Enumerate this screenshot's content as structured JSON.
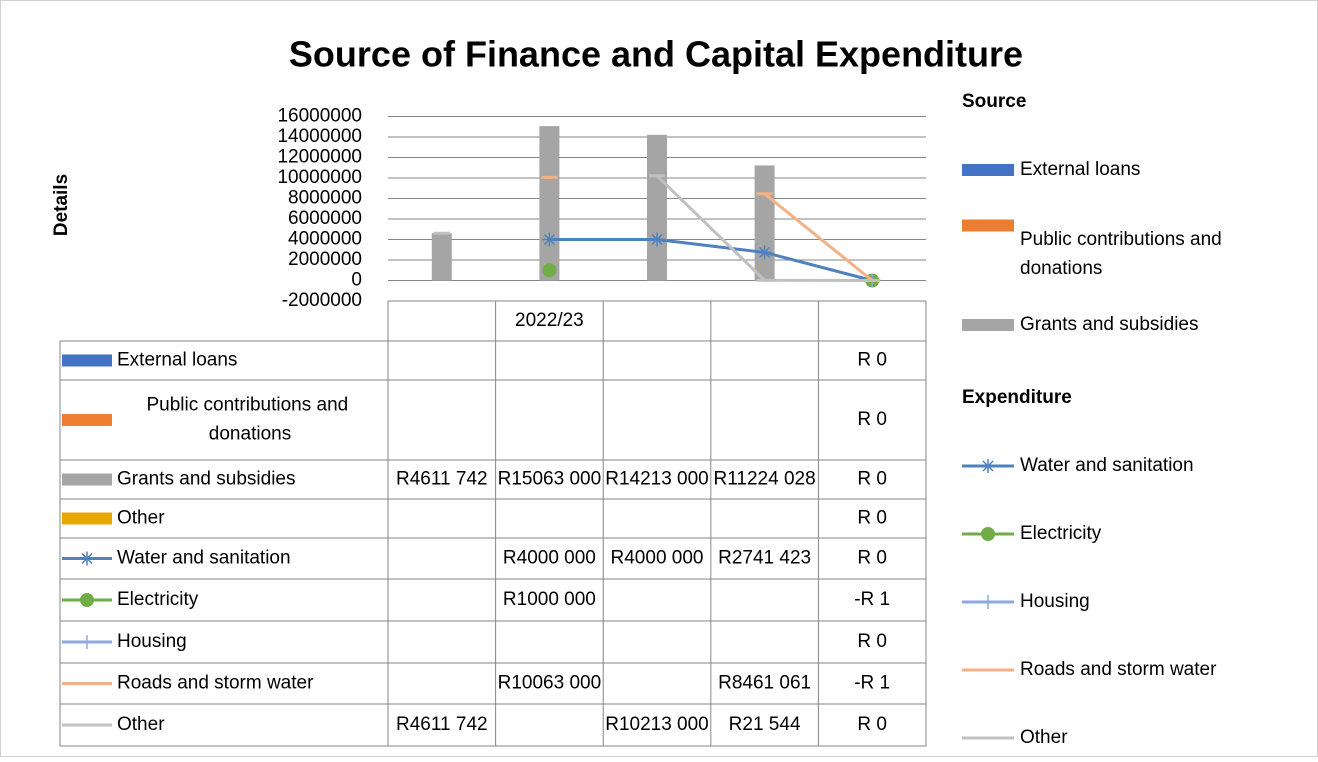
{
  "chart_data": {
    "type": "bar",
    "title": "Source of Finance and Capital Expenditure",
    "y_axis_label": "Details",
    "categories": [
      null,
      "2022/23",
      null,
      null,
      null
    ],
    "ylim": [
      -2000000,
      16000000
    ],
    "yticks": [
      -2000000,
      0,
      2000000,
      4000000,
      6000000,
      8000000,
      10000000,
      12000000,
      14000000,
      16000000
    ],
    "grid": true,
    "legend_position": "right",
    "legend_groups": [
      {
        "title": "Source",
        "series": [
          0,
          1,
          2
        ]
      },
      {
        "title": "Expenditure",
        "series": [
          4,
          5,
          6,
          7,
          8
        ]
      }
    ],
    "series": [
      {
        "name": "External loans",
        "type": "bar",
        "color": "#4472c4",
        "values": [
          null,
          null,
          null,
          null,
          0
        ],
        "value_labels": [
          null,
          null,
          null,
          null,
          "R 0"
        ]
      },
      {
        "name": "Public contributions and donations",
        "type": "bar",
        "color": "#ed7d31",
        "values": [
          null,
          null,
          null,
          null,
          0
        ],
        "value_labels": [
          null,
          null,
          null,
          null,
          "R 0"
        ]
      },
      {
        "name": "Grants and subsidies",
        "type": "bar",
        "color": "#a5a5a5",
        "values": [
          4611742,
          15063000,
          14213000,
          11224028,
          0
        ],
        "value_labels": [
          "R4611 742",
          "R15063 000",
          "R14213 000",
          "R11224 028",
          "R 0"
        ]
      },
      {
        "name": "Other",
        "type": "bar",
        "color": "#e7a700",
        "values": [
          null,
          null,
          null,
          null,
          0
        ],
        "value_labels": [
          null,
          null,
          null,
          null,
          "R 0"
        ]
      },
      {
        "name": "Water and sanitation",
        "type": "line",
        "marker": "star",
        "color": "#4f81bd",
        "values": [
          null,
          4000000,
          4000000,
          2741423,
          0
        ],
        "value_labels": [
          null,
          "R4000 000",
          "R4000 000",
          "R2741 423",
          "R 0"
        ]
      },
      {
        "name": "Electricity",
        "type": "line",
        "marker": "circle",
        "color": "#70ad47",
        "values": [
          null,
          1000000,
          null,
          null,
          -1
        ],
        "value_labels": [
          null,
          "R1000 000",
          null,
          null,
          "-R 1"
        ]
      },
      {
        "name": "Housing",
        "type": "line",
        "marker": "plus",
        "color": "#8faadc",
        "values": [
          null,
          null,
          null,
          null,
          0
        ],
        "value_labels": [
          null,
          null,
          null,
          null,
          "R 0"
        ]
      },
      {
        "name": "Roads and storm water",
        "type": "line",
        "marker": "dash",
        "color": "#f4b183",
        "values": [
          null,
          10063000,
          null,
          8461061,
          -1
        ],
        "value_labels": [
          null,
          "R10063 000",
          null,
          "R8461 061",
          "-R 1"
        ]
      },
      {
        "name": "Other",
        "type": "line",
        "marker": "dash",
        "color": "#c0c0c0",
        "values": [
          4611742,
          null,
          10213000,
          21544,
          0
        ],
        "value_labels": [
          "R4611 742",
          null,
          "R10213 000",
          "R21 544",
          "R 0"
        ]
      }
    ]
  }
}
